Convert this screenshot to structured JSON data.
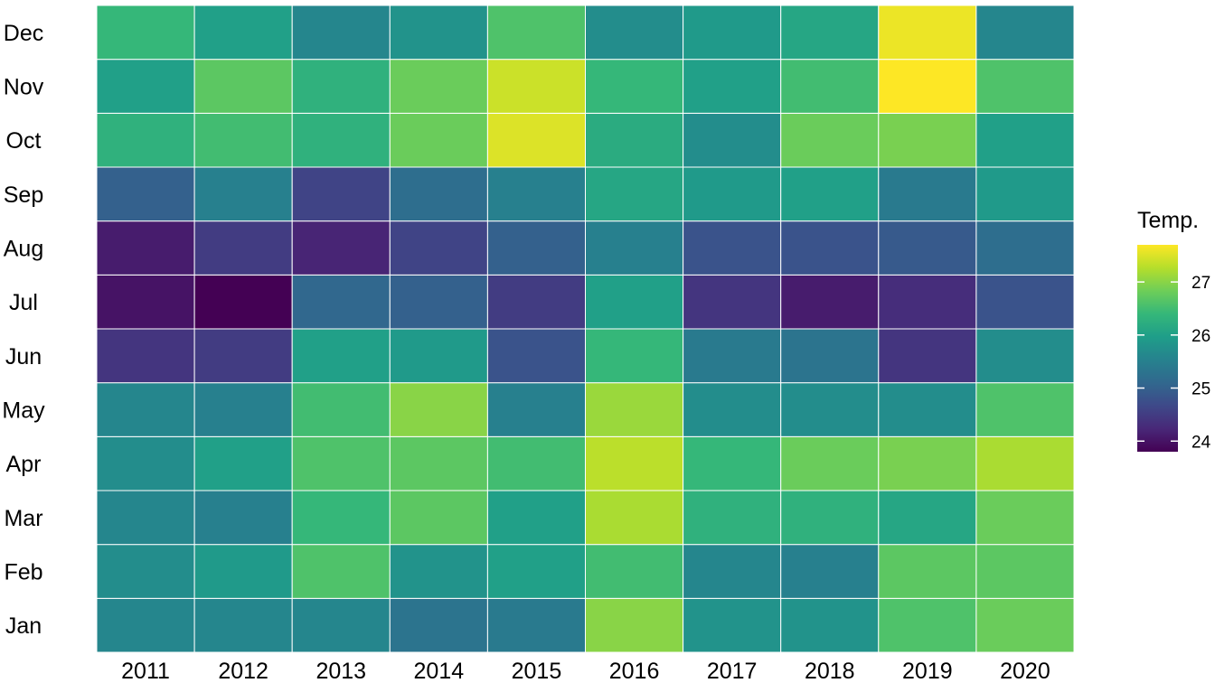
{
  "chart_data": {
    "type": "heatmap",
    "x_categories": [
      "2011",
      "2012",
      "2013",
      "2014",
      "2015",
      "2016",
      "2017",
      "2018",
      "2019",
      "2020"
    ],
    "y_categories": [
      "Jan",
      "Feb",
      "Mar",
      "Apr",
      "May",
      "Jun",
      "Jul",
      "Aug",
      "Sep",
      "Oct",
      "Nov",
      "Dec"
    ],
    "values": [
      [
        25.6,
        25.6,
        25.6,
        25.3,
        25.4,
        27.0,
        25.8,
        25.8,
        26.6,
        26.8
      ],
      [
        25.7,
        25.9,
        26.6,
        25.8,
        26.0,
        26.5,
        25.6,
        25.5,
        26.7,
        26.7
      ],
      [
        25.6,
        25.5,
        26.4,
        26.7,
        26.0,
        27.2,
        26.3,
        26.3,
        26.1,
        26.8
      ],
      [
        25.7,
        26.0,
        26.6,
        26.7,
        26.5,
        27.3,
        26.4,
        26.8,
        26.9,
        27.2
      ],
      [
        25.6,
        25.5,
        26.5,
        27.0,
        25.5,
        27.1,
        25.7,
        25.7,
        25.7,
        26.6
      ],
      [
        24.4,
        24.5,
        26.0,
        25.9,
        24.8,
        26.4,
        25.4,
        25.3,
        24.4,
        25.7
      ],
      [
        24.0,
        23.8,
        25.1,
        25.0,
        24.5,
        26.0,
        24.4,
        24.1,
        24.3,
        24.8
      ],
      [
        24.1,
        24.5,
        24.2,
        24.6,
        25.0,
        25.5,
        24.8,
        24.8,
        24.9,
        25.2
      ],
      [
        25.0,
        25.5,
        24.6,
        25.2,
        25.5,
        26.1,
        25.9,
        26.0,
        25.4,
        25.9
      ],
      [
        26.3,
        26.5,
        26.3,
        26.8,
        27.5,
        26.2,
        25.7,
        26.8,
        26.9,
        26.0
      ],
      [
        26.0,
        26.7,
        26.3,
        26.8,
        27.4,
        26.4,
        26.0,
        26.5,
        27.7,
        26.6
      ],
      [
        26.4,
        26.0,
        25.6,
        25.8,
        26.6,
        25.7,
        25.9,
        26.1,
        27.6,
        25.6
      ]
    ],
    "value_range": [
      23.8,
      27.7
    ],
    "colormap": "viridis",
    "colormap_stops": [
      "#440154",
      "#482878",
      "#3e4989",
      "#31688e",
      "#26828e",
      "#1f9e89",
      "#35b779",
      "#6ece58",
      "#b5de2b",
      "#fde725"
    ],
    "legend": {
      "title": "Temp.",
      "ticks": [
        24,
        25,
        26,
        27
      ],
      "tick_labels": [
        "24",
        "25",
        "26",
        "27"
      ],
      "placement": "right"
    },
    "grid_color": "#ffffff"
  }
}
